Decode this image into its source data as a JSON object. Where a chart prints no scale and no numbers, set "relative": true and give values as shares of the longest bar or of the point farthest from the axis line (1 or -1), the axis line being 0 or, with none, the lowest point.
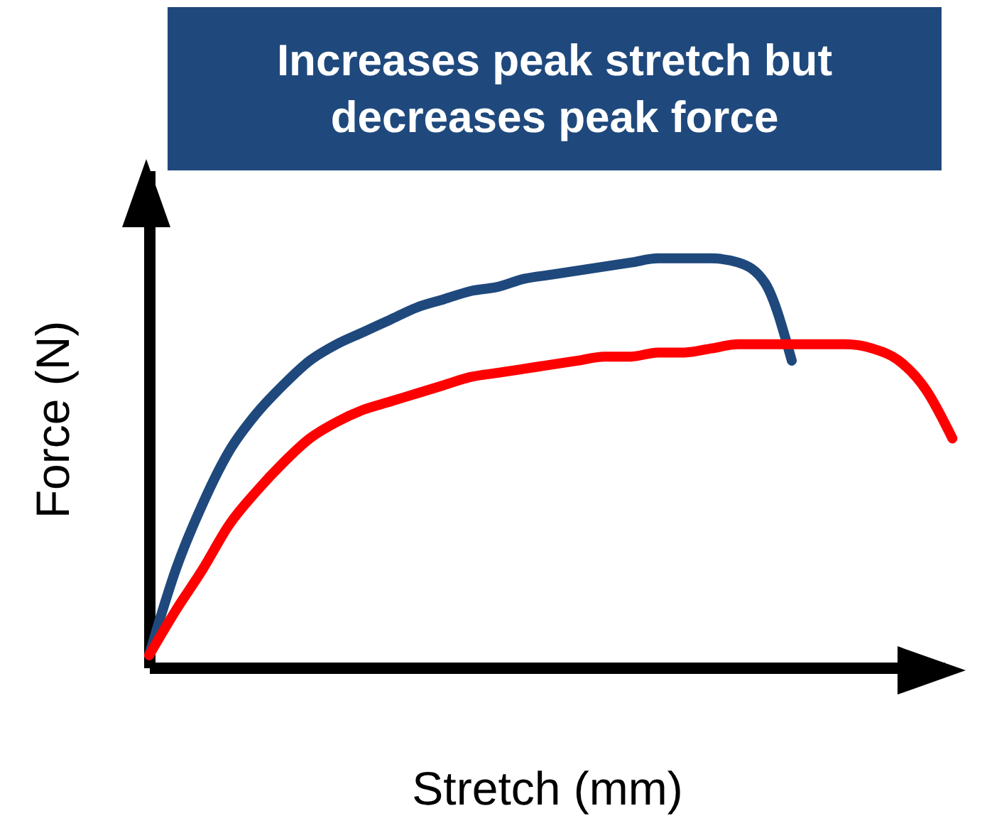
{
  "chart_data": {
    "type": "line",
    "title": "Increases peak stretch but decreases peak force",
    "xlabel": "Stretch (mm)",
    "ylabel": "Force (N)",
    "relative": true,
    "tick_labels": false,
    "categories": [
      null,
      null,
      null,
      null,
      null,
      null,
      null,
      null,
      null,
      null,
      null,
      null,
      null,
      null,
      null,
      null,
      null,
      null,
      null,
      null,
      null,
      null,
      null,
      null,
      null,
      null,
      null,
      null,
      null,
      null,
      null
    ],
    "series": [
      {
        "color": "#1f497d",
        "values": [
          0.03,
          0.24,
          0.4,
          0.53,
          0.62,
          0.69,
          0.75,
          0.79,
          0.82,
          0.85,
          0.88,
          0.9,
          0.92,
          0.93,
          0.95,
          0.96,
          0.97,
          0.98,
          0.99,
          1.0,
          1.0,
          1.0,
          0.99,
          0.94,
          0.75,
          null,
          null,
          null,
          null,
          null,
          null
        ]
      },
      {
        "color": "#ff0000",
        "values": [
          0.03,
          0.14,
          0.24,
          0.35,
          0.43,
          0.5,
          0.56,
          0.6,
          0.63,
          0.65,
          0.67,
          0.69,
          0.71,
          0.72,
          0.73,
          0.74,
          0.75,
          0.76,
          0.76,
          0.77,
          0.77,
          0.78,
          0.79,
          0.79,
          0.79,
          0.79,
          0.79,
          0.78,
          0.75,
          0.68,
          0.56
        ]
      }
    ]
  }
}
